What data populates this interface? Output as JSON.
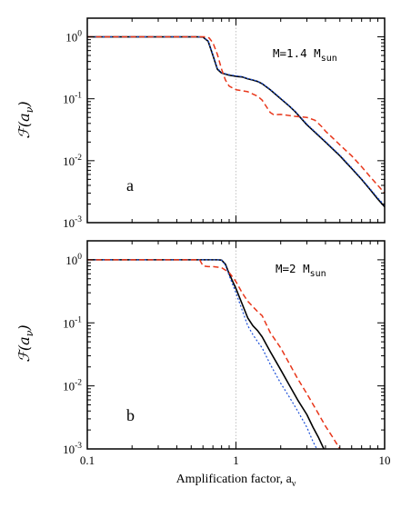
{
  "chart_data": [
    {
      "type": "line",
      "panel_label": "a",
      "annotation": {
        "prefix": "M=1.4 M",
        "subscript": "sun"
      },
      "ylabel": {
        "main": "ℱ(a",
        "subscript": "ν",
        "close": ")"
      },
      "xscale": "log",
      "yscale": "log",
      "xlim": [
        0.1,
        10
      ],
      "ylim": [
        0.001,
        2
      ],
      "x_ticks": [
        0.1,
        1,
        10
      ],
      "y_ticks": [
        {
          "value": 1,
          "base": "10",
          "exp": "0"
        },
        {
          "value": 0.1,
          "base": "10",
          "exp": "-1"
        },
        {
          "value": 0.01,
          "base": "10",
          "exp": "-2"
        },
        {
          "value": 0.001,
          "base": "10",
          "exp": "-3"
        }
      ],
      "reference_line_x": 1,
      "series": [
        {
          "style": "solid",
          "color": "#000000",
          "points": [
            [
              0.1,
              1
            ],
            [
              0.55,
              1
            ],
            [
              0.6,
              0.99
            ],
            [
              0.65,
              0.85
            ],
            [
              0.7,
              0.5
            ],
            [
              0.75,
              0.3
            ],
            [
              0.8,
              0.26
            ],
            [
              0.9,
              0.24
            ],
            [
              1.0,
              0.23
            ],
            [
              1.1,
              0.225
            ],
            [
              1.2,
              0.21
            ],
            [
              1.3,
              0.2
            ],
            [
              1.4,
              0.19
            ],
            [
              1.5,
              0.175
            ],
            [
              1.7,
              0.14
            ],
            [
              2.0,
              0.1
            ],
            [
              2.3,
              0.075
            ],
            [
              2.5,
              0.062
            ],
            [
              3.0,
              0.038
            ],
            [
              4.0,
              0.02
            ],
            [
              5.0,
              0.012
            ],
            [
              6.0,
              0.0075
            ],
            [
              7.0,
              0.005
            ],
            [
              8.0,
              0.0034
            ],
            [
              9.0,
              0.0024
            ],
            [
              10,
              0.0018
            ]
          ]
        },
        {
          "style": "dotted",
          "color": "#1a4ed8",
          "points": [
            [
              0.1,
              1
            ],
            [
              0.55,
              1
            ],
            [
              0.6,
              0.99
            ],
            [
              0.65,
              0.87
            ],
            [
              0.7,
              0.52
            ],
            [
              0.75,
              0.31
            ],
            [
              0.8,
              0.265
            ],
            [
              0.9,
              0.245
            ],
            [
              1.0,
              0.235
            ],
            [
              1.1,
              0.228
            ],
            [
              1.2,
              0.212
            ],
            [
              1.3,
              0.202
            ],
            [
              1.4,
              0.192
            ],
            [
              1.5,
              0.177
            ],
            [
              1.7,
              0.142
            ],
            [
              2.0,
              0.102
            ],
            [
              2.3,
              0.076
            ],
            [
              2.5,
              0.063
            ],
            [
              3.0,
              0.039
            ],
            [
              4.0,
              0.0205
            ],
            [
              5.0,
              0.0123
            ],
            [
              6.0,
              0.0077
            ],
            [
              7.0,
              0.0051
            ],
            [
              8.0,
              0.0035
            ],
            [
              9.0,
              0.0025
            ],
            [
              10,
              0.0019
            ]
          ]
        },
        {
          "style": "dashed",
          "color": "#e8361a",
          "points": [
            [
              0.1,
              1
            ],
            [
              0.62,
              1
            ],
            [
              0.66,
              0.96
            ],
            [
              0.7,
              0.8
            ],
            [
              0.75,
              0.52
            ],
            [
              0.8,
              0.3
            ],
            [
              0.85,
              0.2
            ],
            [
              0.9,
              0.16
            ],
            [
              1.0,
              0.14
            ],
            [
              1.2,
              0.13
            ],
            [
              1.4,
              0.11
            ],
            [
              1.5,
              0.095
            ],
            [
              1.7,
              0.06
            ],
            [
              1.8,
              0.055
            ],
            [
              2.0,
              0.056
            ],
            [
              2.5,
              0.052
            ],
            [
              3.0,
              0.05
            ],
            [
              3.4,
              0.045
            ],
            [
              3.8,
              0.035
            ],
            [
              4.0,
              0.03
            ],
            [
              4.5,
              0.023
            ],
            [
              5.0,
              0.018
            ],
            [
              6.0,
              0.012
            ],
            [
              7.0,
              0.008
            ],
            [
              8.0,
              0.0055
            ],
            [
              9.0,
              0.004
            ],
            [
              10,
              0.003
            ]
          ]
        }
      ]
    },
    {
      "type": "line",
      "panel_label": "b",
      "annotation": {
        "prefix": "M=2 M",
        "subscript": "sun"
      },
      "ylabel": {
        "main": "ℱ(a",
        "subscript": "ν",
        "close": ")"
      },
      "xlabel": {
        "main": "Amplification factor, a",
        "subscript": "ν"
      },
      "xscale": "log",
      "yscale": "log",
      "xlim": [
        0.1,
        10
      ],
      "ylim": [
        0.001,
        2
      ],
      "x_ticks": [
        0.1,
        1,
        10
      ],
      "y_ticks": [
        {
          "value": 1,
          "base": "10",
          "exp": "0"
        },
        {
          "value": 0.1,
          "base": "10",
          "exp": "-1"
        },
        {
          "value": 0.01,
          "base": "10",
          "exp": "-2"
        },
        {
          "value": 0.001,
          "base": "10",
          "exp": "-3"
        }
      ],
      "reference_line_x": 1,
      "series": [
        {
          "style": "solid",
          "color": "#000000",
          "points": [
            [
              0.1,
              1
            ],
            [
              0.75,
              1
            ],
            [
              0.8,
              0.99
            ],
            [
              0.85,
              0.85
            ],
            [
              0.9,
              0.6
            ],
            [
              1.0,
              0.35
            ],
            [
              1.1,
              0.2
            ],
            [
              1.2,
              0.12
            ],
            [
              1.3,
              0.09
            ],
            [
              1.4,
              0.075
            ],
            [
              1.5,
              0.06
            ],
            [
              1.7,
              0.035
            ],
            [
              2.0,
              0.018
            ],
            [
              2.3,
              0.01
            ],
            [
              2.6,
              0.006
            ],
            [
              3.0,
              0.0035
            ],
            [
              3.3,
              0.0022
            ],
            [
              3.6,
              0.0015
            ],
            [
              3.9,
              0.001
            ]
          ]
        },
        {
          "style": "dotted",
          "color": "#1a4ed8",
          "points": [
            [
              0.1,
              1
            ],
            [
              0.75,
              1
            ],
            [
              0.8,
              0.99
            ],
            [
              0.85,
              0.82
            ],
            [
              0.9,
              0.56
            ],
            [
              1.0,
              0.3
            ],
            [
              1.1,
              0.16
            ],
            [
              1.2,
              0.09
            ],
            [
              1.3,
              0.065
            ],
            [
              1.4,
              0.05
            ],
            [
              1.5,
              0.04
            ],
            [
              1.7,
              0.022
            ],
            [
              2.0,
              0.011
            ],
            [
              2.3,
              0.0065
            ],
            [
              2.6,
              0.004
            ],
            [
              3.0,
              0.0022
            ],
            [
              3.3,
              0.0013
            ],
            [
              3.5,
              0.001
            ]
          ]
        },
        {
          "style": "dashed",
          "color": "#e8361a",
          "points": [
            [
              0.1,
              1
            ],
            [
              0.57,
              1
            ],
            [
              0.6,
              0.8
            ],
            [
              0.65,
              0.78
            ],
            [
              0.7,
              0.78
            ],
            [
              0.8,
              0.75
            ],
            [
              0.9,
              0.63
            ],
            [
              1.0,
              0.45
            ],
            [
              1.1,
              0.3
            ],
            [
              1.2,
              0.22
            ],
            [
              1.4,
              0.15
            ],
            [
              1.5,
              0.13
            ],
            [
              1.7,
              0.07
            ],
            [
              2.0,
              0.04
            ],
            [
              2.3,
              0.022
            ],
            [
              2.6,
              0.013
            ],
            [
              3.0,
              0.0075
            ],
            [
              3.5,
              0.004
            ],
            [
              4.0,
              0.0023
            ],
            [
              4.5,
              0.0015
            ],
            [
              5.0,
              0.001
            ]
          ]
        }
      ]
    }
  ]
}
